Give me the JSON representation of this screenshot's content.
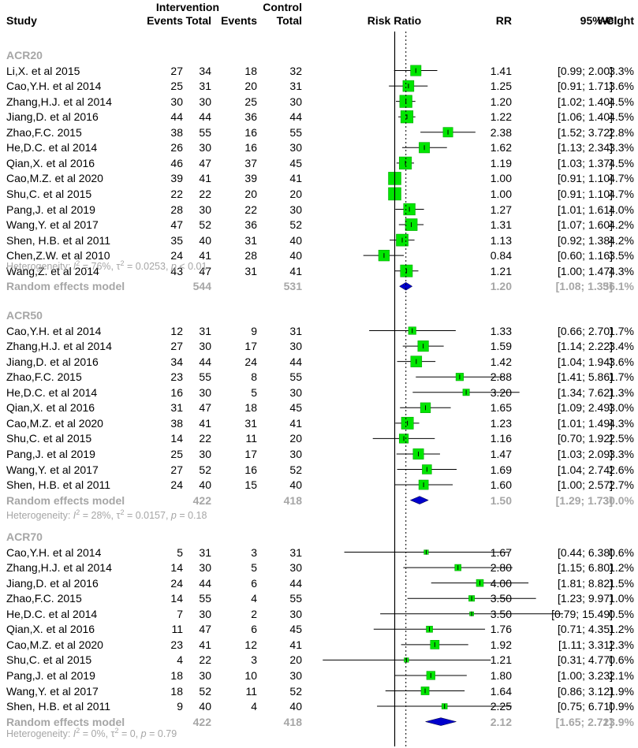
{
  "chart_data": {
    "type": "forest",
    "x_scale": "log",
    "reference_line": 1,
    "overall_dotted_line": 1.2,
    "colors": {
      "square": "#00e600",
      "square_border": "#009900",
      "diamond": "#0000cc",
      "gray_text": "#a6a6a6"
    },
    "headers": {
      "study": "Study",
      "intervention": "Intervention",
      "control": "Control",
      "events": "Events",
      "total": "Total",
      "plot": "Risk Ratio",
      "rr": "RR",
      "ci": "95%-CI",
      "weight": "Weight"
    },
    "groups": [
      {
        "name": "ACR20",
        "studies": [
          {
            "study": "Li,X. et al 2015",
            "ie": "27",
            "it": "34",
            "ce": "18",
            "ct": "32",
            "rr": 1.41,
            "lo": 0.99,
            "hi": 2.0,
            "rr_text": "1.41",
            "ci_text": "[0.99;  2.00]",
            "weight_text": "3.3%",
            "weight": 3.3
          },
          {
            "study": "Cao,Y.H. et al 2014",
            "ie": "25",
            "it": "31",
            "ce": "20",
            "ct": "31",
            "rr": 1.25,
            "lo": 0.91,
            "hi": 1.71,
            "rr_text": "1.25",
            "ci_text": "[0.91;  1.71]",
            "weight_text": "3.6%",
            "weight": 3.6
          },
          {
            "study": "Zhang,H.J. et al 2014",
            "ie": "30",
            "it": "30",
            "ce": "25",
            "ct": "30",
            "rr": 1.2,
            "lo": 1.02,
            "hi": 1.4,
            "rr_text": "1.20",
            "ci_text": "[1.02;  1.40]",
            "weight_text": "4.5%",
            "weight": 4.5
          },
          {
            "study": "Jiang,D. et al 2016",
            "ie": "44",
            "it": "44",
            "ce": "36",
            "ct": "44",
            "rr": 1.22,
            "lo": 1.06,
            "hi": 1.4,
            "rr_text": "1.22",
            "ci_text": "[1.06;  1.40]",
            "weight_text": "4.5%",
            "weight": 4.5
          },
          {
            "study": "Zhao,F.C. 2015",
            "ie": "38",
            "it": "55",
            "ce": "16",
            "ct": "55",
            "rr": 2.38,
            "lo": 1.52,
            "hi": 3.72,
            "rr_text": "2.38",
            "ci_text": "[1.52;  3.72]",
            "weight_text": "2.8%",
            "weight": 2.8
          },
          {
            "study": "He,D.C. et al 2014",
            "ie": "26",
            "it": "30",
            "ce": "16",
            "ct": "30",
            "rr": 1.62,
            "lo": 1.13,
            "hi": 2.34,
            "rr_text": "1.62",
            "ci_text": "[1.13;  2.34]",
            "weight_text": "3.3%",
            "weight": 3.3
          },
          {
            "study": "Qian,X. et al 2016",
            "ie": "46",
            "it": "47",
            "ce": "37",
            "ct": "45",
            "rr": 1.19,
            "lo": 1.03,
            "hi": 1.37,
            "rr_text": "1.19",
            "ci_text": "[1.03;  1.37]",
            "weight_text": "4.5%",
            "weight": 4.5
          },
          {
            "study": "Cao,M.Z. et al 2020",
            "ie": "39",
            "it": "41",
            "ce": "39",
            "ct": "41",
            "rr": 1.0,
            "lo": 0.91,
            "hi": 1.1,
            "rr_text": "1.00",
            "ci_text": "[0.91;  1.10]",
            "weight_text": "4.7%",
            "weight": 4.7
          },
          {
            "study": "Shu,C. et al 2015",
            "ie": "22",
            "it": "22",
            "ce": "20",
            "ct": "20",
            "rr": 1.0,
            "lo": 0.91,
            "hi": 1.1,
            "rr_text": "1.00",
            "ci_text": "[0.91;  1.10]",
            "weight_text": "4.7%",
            "weight": 4.7
          },
          {
            "study": "Pang,J. et al 2019",
            "ie": "28",
            "it": "30",
            "ce": "22",
            "ct": "30",
            "rr": 1.27,
            "lo": 1.01,
            "hi": 1.61,
            "rr_text": "1.27",
            "ci_text": "[1.01;  1.61]",
            "weight_text": "4.0%",
            "weight": 4.0
          },
          {
            "study": "Wang,Y. et al 2017",
            "ie": "47",
            "it": "52",
            "ce": "36",
            "ct": "52",
            "rr": 1.31,
            "lo": 1.07,
            "hi": 1.6,
            "rr_text": "1.31",
            "ci_text": "[1.07;  1.60]",
            "weight_text": "4.2%",
            "weight": 4.2
          },
          {
            "study": "Shen, H.B. et al 2011",
            "ie": "35",
            "it": "40",
            "ce": "31",
            "ct": "40",
            "rr": 1.13,
            "lo": 0.92,
            "hi": 1.38,
            "rr_text": "1.13",
            "ci_text": "[0.92;  1.38]",
            "weight_text": "4.2%",
            "weight": 4.2
          },
          {
            "study": "Chen,Z.W. et al 2010",
            "ie": "24",
            "it": "41",
            "ce": "28",
            "ct": "40",
            "rr": 0.84,
            "lo": 0.6,
            "hi": 1.16,
            "rr_text": "0.84",
            "ci_text": "[0.60;  1.16]",
            "weight_text": "3.5%",
            "weight": 3.5
          },
          {
            "study": "Wang,Z. et al 2014",
            "ie": "43",
            "it": "47",
            "ce": "31",
            "ct": "41",
            "rr": 1.21,
            "lo": 1.0,
            "hi": 1.47,
            "rr_text": "1.21",
            "ci_text": "[1.00;  1.47]",
            "weight_text": "4.3%",
            "weight": 4.3
          }
        ],
        "pooled": {
          "label": "Random effects model",
          "it": "544",
          "ct": "531",
          "rr": 1.2,
          "lo": 1.08,
          "hi": 1.33,
          "rr_text": "1.20",
          "ci_text": "[1.08;  1.33]",
          "weight_text": "56.1%"
        },
        "heterogeneity": {
          "prefix": "Heterogeneity: ",
          "i2_value": " = 76%, ",
          "tau2_value": " = 0.0253, ",
          "p_value": " < 0.01"
        }
      },
      {
        "name": "ACR50",
        "studies": [
          {
            "study": "Cao,Y.H. et al 2014",
            "ie": "12",
            "it": "31",
            "ce": "9",
            "ct": "31",
            "rr": 1.33,
            "lo": 0.66,
            "hi": 2.7,
            "rr_text": "1.33",
            "ci_text": "[0.66;  2.70]",
            "weight_text": "1.7%",
            "weight": 1.7
          },
          {
            "study": "Zhang,H.J. et al 2014",
            "ie": "27",
            "it": "30",
            "ce": "17",
            "ct": "30",
            "rr": 1.59,
            "lo": 1.14,
            "hi": 2.22,
            "rr_text": "1.59",
            "ci_text": "[1.14;  2.22]",
            "weight_text": "3.4%",
            "weight": 3.4
          },
          {
            "study": "Jiang,D. et al 2016",
            "ie": "34",
            "it": "44",
            "ce": "24",
            "ct": "44",
            "rr": 1.42,
            "lo": 1.04,
            "hi": 1.94,
            "rr_text": "1.42",
            "ci_text": "[1.04;  1.94]",
            "weight_text": "3.6%",
            "weight": 3.6
          },
          {
            "study": "Zhao,F.C. 2015",
            "ie": "23",
            "it": "55",
            "ce": "8",
            "ct": "55",
            "rr": 2.88,
            "lo": 1.41,
            "hi": 5.86,
            "rr_text": "2.88",
            "ci_text": "[1.41;  5.86]",
            "weight_text": "1.7%",
            "weight": 1.7
          },
          {
            "study": "He,D.C. et al 2014",
            "ie": "16",
            "it": "30",
            "ce": "5",
            "ct": "30",
            "rr": 3.2,
            "lo": 1.34,
            "hi": 7.62,
            "rr_text": "3.20",
            "ci_text": "[1.34;  7.62]",
            "weight_text": "1.3%",
            "weight": 1.3
          },
          {
            "study": "Qian,X. et al 2016",
            "ie": "31",
            "it": "47",
            "ce": "18",
            "ct": "45",
            "rr": 1.65,
            "lo": 1.09,
            "hi": 2.49,
            "rr_text": "1.65",
            "ci_text": "[1.09;  2.49]",
            "weight_text": "3.0%",
            "weight": 3.0
          },
          {
            "study": "Cao,M.Z. et al 2020",
            "ie": "38",
            "it": "41",
            "ce": "31",
            "ct": "41",
            "rr": 1.23,
            "lo": 1.01,
            "hi": 1.49,
            "rr_text": "1.23",
            "ci_text": "[1.01;  1.49]",
            "weight_text": "4.3%",
            "weight": 4.3
          },
          {
            "study": "Shu,C. et al 2015",
            "ie": "14",
            "it": "22",
            "ce": "11",
            "ct": "20",
            "rr": 1.16,
            "lo": 0.7,
            "hi": 1.92,
            "rr_text": "1.16",
            "ci_text": "[0.70;  1.92]",
            "weight_text": "2.5%",
            "weight": 2.5
          },
          {
            "study": "Pang,J. et al 2019",
            "ie": "25",
            "it": "30",
            "ce": "17",
            "ct": "30",
            "rr": 1.47,
            "lo": 1.03,
            "hi": 2.09,
            "rr_text": "1.47",
            "ci_text": "[1.03;  2.09]",
            "weight_text": "3.3%",
            "weight": 3.3
          },
          {
            "study": "Wang,Y. et al 2017",
            "ie": "27",
            "it": "52",
            "ce": "16",
            "ct": "52",
            "rr": 1.69,
            "lo": 1.04,
            "hi": 2.74,
            "rr_text": "1.69",
            "ci_text": "[1.04;  2.74]",
            "weight_text": "2.6%",
            "weight": 2.6
          },
          {
            "study": "Shen, H.B. et al 2011",
            "ie": "24",
            "it": "40",
            "ce": "15",
            "ct": "40",
            "rr": 1.6,
            "lo": 1.0,
            "hi": 2.57,
            "rr_text": "1.60",
            "ci_text": "[1.00;  2.57]",
            "weight_text": "2.7%",
            "weight": 2.7
          }
        ],
        "pooled": {
          "label": "Random effects model",
          "it": "422",
          "ct": "418",
          "rr": 1.5,
          "lo": 1.29,
          "hi": 1.73,
          "rr_text": "1.50",
          "ci_text": "[1.29;  1.73]",
          "weight_text": "30.0%"
        },
        "heterogeneity": {
          "prefix": "Heterogeneity: ",
          "i2_value": " = 28%, ",
          "tau2_value": " = 0.0157, ",
          "p_value": " = 0.18"
        }
      },
      {
        "name": "ACR70",
        "studies": [
          {
            "study": "Cao,Y.H. et al 2014",
            "ie": "5",
            "it": "31",
            "ce": "3",
            "ct": "31",
            "rr": 1.67,
            "lo": 0.44,
            "hi": 6.38,
            "rr_text": "1.67",
            "ci_text": "[0.44;  6.38]",
            "weight_text": "0.6%",
            "weight": 0.6
          },
          {
            "study": "Zhang,H.J. et al 2014",
            "ie": "14",
            "it": "30",
            "ce": "5",
            "ct": "30",
            "rr": 2.8,
            "lo": 1.15,
            "hi": 6.8,
            "rr_text": "2.80",
            "ci_text": "[1.15;  6.80]",
            "weight_text": "1.2%",
            "weight": 1.2
          },
          {
            "study": "Jiang,D. et al 2016",
            "ie": "24",
            "it": "44",
            "ce": "6",
            "ct": "44",
            "rr": 4.0,
            "lo": 1.81,
            "hi": 8.82,
            "rr_text": "4.00",
            "ci_text": "[1.81;  8.82]",
            "weight_text": "1.5%",
            "weight": 1.5
          },
          {
            "study": "Zhao,F.C. 2015",
            "ie": "14",
            "it": "55",
            "ce": "4",
            "ct": "55",
            "rr": 3.5,
            "lo": 1.23,
            "hi": 9.97,
            "rr_text": "3.50",
            "ci_text": "[1.23;  9.97]",
            "weight_text": "1.0%",
            "weight": 1.0
          },
          {
            "study": "He,D.C. et al 2014",
            "ie": "7",
            "it": "30",
            "ce": "2",
            "ct": "30",
            "rr": 3.5,
            "lo": 0.79,
            "hi": 15.49,
            "rr_text": "3.50",
            "ci_text": "[0.79; 15.49]",
            "weight_text": "0.5%",
            "weight": 0.5
          },
          {
            "study": "Qian,X. et al 2016",
            "ie": "11",
            "it": "47",
            "ce": "6",
            "ct": "45",
            "rr": 1.76,
            "lo": 0.71,
            "hi": 4.35,
            "rr_text": "1.76",
            "ci_text": "[0.71;  4.35]",
            "weight_text": "1.2%",
            "weight": 1.2
          },
          {
            "study": "Cao,M.Z. et al 2020",
            "ie": "23",
            "it": "41",
            "ce": "12",
            "ct": "41",
            "rr": 1.92,
            "lo": 1.11,
            "hi": 3.31,
            "rr_text": "1.92",
            "ci_text": "[1.11;  3.31]",
            "weight_text": "2.3%",
            "weight": 2.3
          },
          {
            "study": "Shu,C. et al 2015",
            "ie": "4",
            "it": "22",
            "ce": "3",
            "ct": "20",
            "rr": 1.21,
            "lo": 0.31,
            "hi": 4.77,
            "rr_text": "1.21",
            "ci_text": "[0.31;  4.77]",
            "weight_text": "0.6%",
            "weight": 0.6
          },
          {
            "study": "Pang,J. et al 2019",
            "ie": "18",
            "it": "30",
            "ce": "10",
            "ct": "30",
            "rr": 1.8,
            "lo": 1.0,
            "hi": 3.23,
            "rr_text": "1.80",
            "ci_text": "[1.00;  3.23]",
            "weight_text": "2.1%",
            "weight": 2.1
          },
          {
            "study": "Wang,Y. et al 2017",
            "ie": "18",
            "it": "52",
            "ce": "11",
            "ct": "52",
            "rr": 1.64,
            "lo": 0.86,
            "hi": 3.12,
            "rr_text": "1.64",
            "ci_text": "[0.86;  3.12]",
            "weight_text": "1.9%",
            "weight": 1.9
          },
          {
            "study": "Shen, H.B. et al 2011",
            "ie": "9",
            "it": "40",
            "ce": "4",
            "ct": "40",
            "rr": 2.25,
            "lo": 0.75,
            "hi": 6.71,
            "rr_text": "2.25",
            "ci_text": "[0.75;  6.71]",
            "weight_text": "0.9%",
            "weight": 0.9
          }
        ],
        "pooled": {
          "label": "Random effects model",
          "it": "422",
          "ct": "418",
          "rr": 2.12,
          "lo": 1.65,
          "hi": 2.72,
          "rr_text": "2.12",
          "ci_text": "[1.65;  2.72]",
          "weight_text": "13.9%"
        },
        "heterogeneity": {
          "prefix": "Heterogeneity: ",
          "i2_value": " = 0%, ",
          "tau2_value": " = 0, ",
          "p_value": " = 0.79"
        }
      }
    ]
  }
}
